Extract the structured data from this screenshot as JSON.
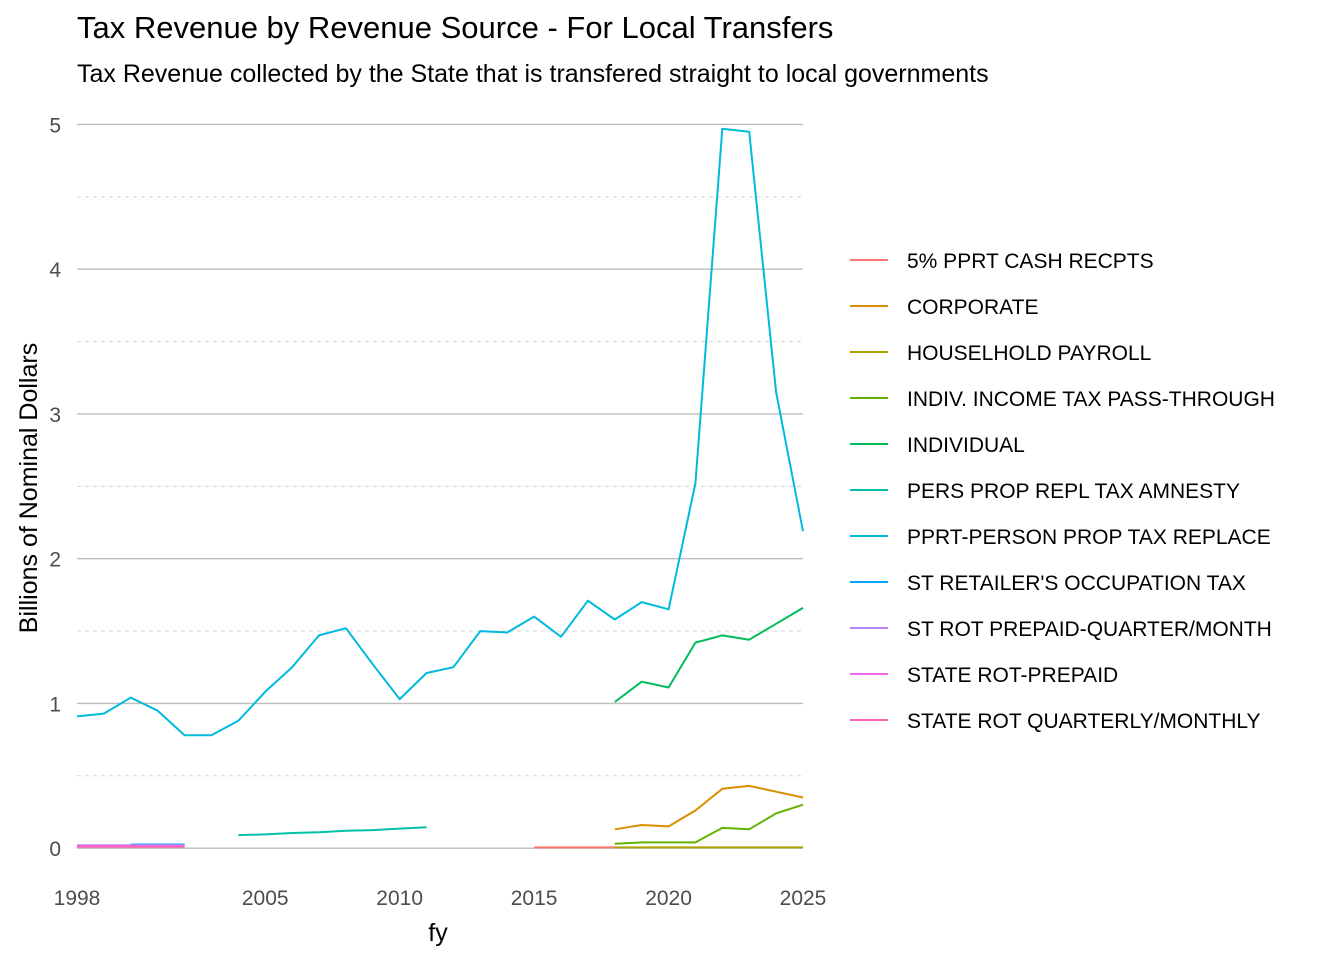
{
  "chart_data": {
    "type": "line",
    "title": "Tax Revenue by Revenue Source - For Local Transfers",
    "subtitle": "Tax Revenue collected by the State that is transfered straight to local governments",
    "xlabel": "fy",
    "ylabel": "Billions of Nominal Dollars",
    "xlim": [
      1998,
      2025
    ],
    "ylim": [
      -0.22,
      5.1
    ],
    "x_ticks": [
      1998,
      2005,
      2010,
      2015,
      2020,
      2025
    ],
    "y_ticks": [
      0,
      1,
      2,
      3,
      4,
      5
    ],
    "grid": true,
    "legend_position": "right",
    "series": [
      {
        "name": "5% PPRT CASH RECPTS",
        "color": "#F8766D",
        "x": [
          2015,
          2016,
          2017,
          2018
        ],
        "y": [
          0.005,
          0.005,
          0.005,
          0.005
        ]
      },
      {
        "name": "CORPORATE",
        "color": "#DB8E00",
        "x": [
          2018,
          2019,
          2020,
          2021,
          2022,
          2023,
          2024,
          2025
        ],
        "y": [
          0.13,
          0.16,
          0.15,
          0.26,
          0.41,
          0.43,
          0.39,
          0.35
        ]
      },
      {
        "name": "HOUSELHOLD PAYROLL",
        "color": "#AEA200",
        "x": [
          2018,
          2019,
          2020,
          2021,
          2022,
          2023,
          2024,
          2025
        ],
        "y": [
          0.005,
          0.005,
          0.005,
          0.005,
          0.005,
          0.005,
          0.005,
          0.005
        ]
      },
      {
        "name": "INDIV. INCOME TAX PASS-THROUGH",
        "color": "#64B200",
        "x": [
          2018,
          2019,
          2020,
          2021,
          2022,
          2023,
          2024,
          2025
        ],
        "y": [
          0.03,
          0.04,
          0.04,
          0.04,
          0.14,
          0.13,
          0.24,
          0.3
        ]
      },
      {
        "name": "INDIVIDUAL",
        "color": "#00BD5C",
        "x": [
          2018,
          2019,
          2020,
          2021,
          2022,
          2023,
          2024,
          2025
        ],
        "y": [
          1.01,
          1.15,
          1.11,
          1.42,
          1.47,
          1.44,
          1.55,
          1.66
        ]
      },
      {
        "name": "PERS PROP REPL TAX AMNESTY",
        "color": "#00C1A7",
        "x": [
          2004,
          2005,
          2006,
          2007,
          2008,
          2009,
          2010,
          2011
        ],
        "y": [
          0.09,
          0.095,
          0.105,
          0.11,
          0.12,
          0.125,
          0.135,
          0.145
        ]
      },
      {
        "name": "PPRT-PERSON PROP TAX REPLACE",
        "color": "#00BADE",
        "x": [
          1998,
          1999,
          2000,
          2001,
          2002,
          2003,
          2004,
          2005,
          2006,
          2007,
          2008,
          2009,
          2010,
          2011,
          2012,
          2013,
          2014,
          2015,
          2016,
          2017,
          2018,
          2019,
          2020,
          2021,
          2022,
          2023,
          2024,
          2025
        ],
        "y": [
          0.91,
          0.93,
          1.04,
          0.95,
          0.78,
          0.78,
          0.88,
          1.08,
          1.25,
          1.47,
          1.52,
          1.27,
          1.03,
          1.21,
          1.25,
          1.5,
          1.49,
          1.6,
          1.46,
          1.71,
          1.58,
          1.7,
          1.65,
          2.52,
          4.97,
          4.95,
          3.15,
          2.19
        ]
      },
      {
        "name": "ST RETAILER'S OCCUPATION TAX",
        "color": "#00A6FF",
        "x": [
          2000,
          2001,
          2002
        ],
        "y": [
          0.025,
          0.025,
          0.025
        ]
      },
      {
        "name": "ST ROT PREPAID-QUARTER/MONTH",
        "color": "#B385FF",
        "x": [
          1998,
          1999,
          2000,
          2001,
          2002
        ],
        "y": [
          0.02,
          0.02,
          0.02,
          0.02,
          0.02
        ]
      },
      {
        "name": "STATE ROT-PREPAID",
        "color": "#EF67EB",
        "x": [
          1998,
          1999,
          2000,
          2001,
          2002
        ],
        "y": [
          0.015,
          0.015,
          0.015,
          0.015,
          0.015
        ]
      },
      {
        "name": "STATE ROT QUARTERLY/MONTHLY",
        "color": "#FF63B6",
        "x": [
          1998,
          1999,
          2000,
          2001,
          2002
        ],
        "y": [
          0.01,
          0.01,
          0.01,
          0.01,
          0.01
        ]
      }
    ]
  }
}
